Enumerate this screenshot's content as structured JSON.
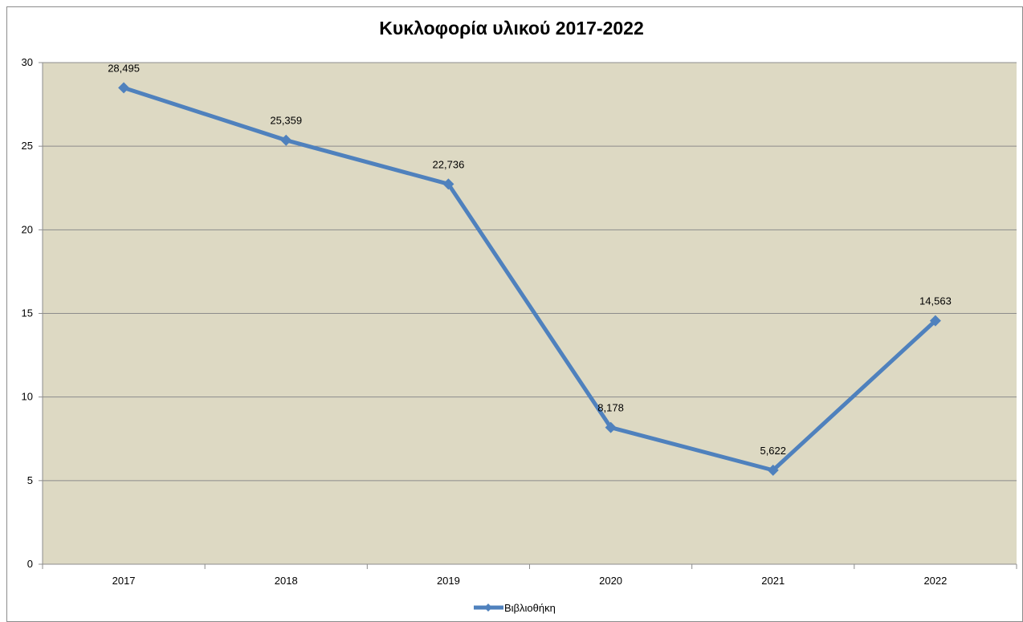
{
  "chart_data": {
    "type": "line",
    "title": "Κυκλοφορία υλικού 2017-2022",
    "categories": [
      "2017",
      "2018",
      "2019",
      "2020",
      "2021",
      "2022"
    ],
    "series": [
      {
        "name": "Βιβλιοθήκη",
        "values": [
          28.495,
          25.359,
          22.736,
          8.178,
          5.622,
          14.563
        ],
        "labels": [
          "28,495",
          "25,359",
          "22,736",
          "8,178",
          "5,622",
          "14,563"
        ]
      }
    ],
    "y_ticks": [
      "0",
      "5",
      "10",
      "15",
      "20",
      "25",
      "30"
    ],
    "ylim": [
      0,
      30
    ],
    "grid": true,
    "legend_position": "bottom",
    "colors": {
      "plot_background": "#ddd9c3",
      "series": "#4f81bd",
      "gridline": "#8c8c8c",
      "axis": "#8c8c8c"
    }
  }
}
